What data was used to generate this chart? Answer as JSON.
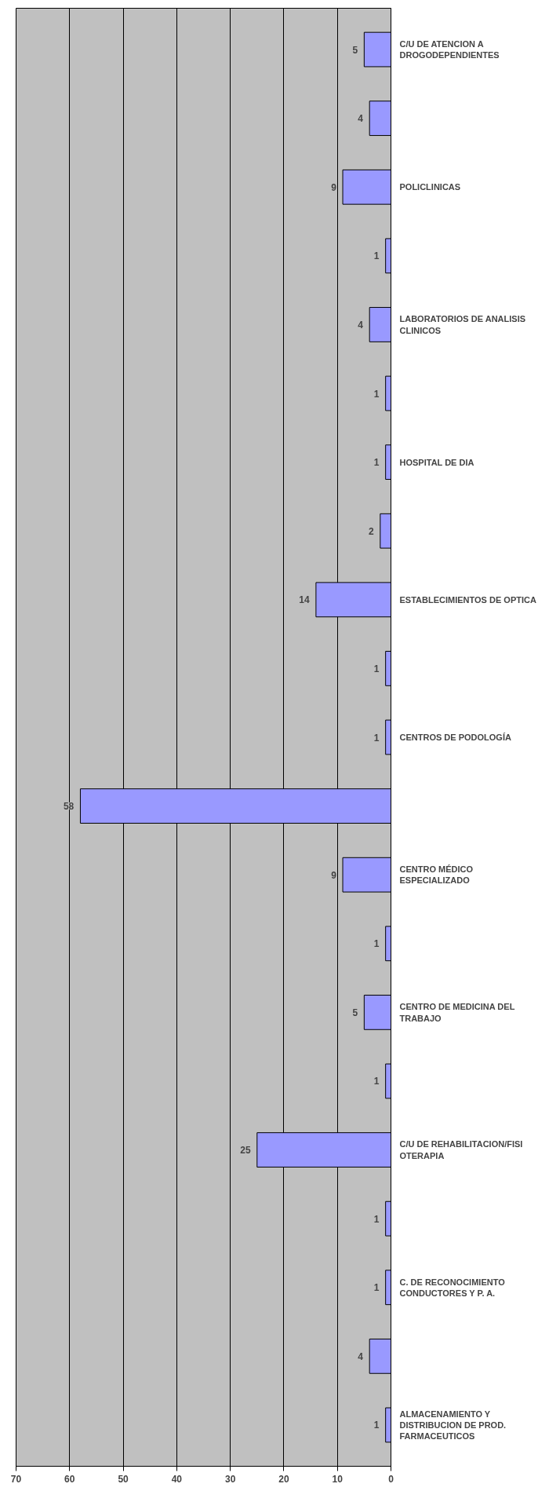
{
  "chart_data": {
    "type": "bar",
    "orientation": "horizontal",
    "categories": [
      "C/U DE ATENCION A DROGODEPENDIENTES",
      null,
      "POLICLINICAS",
      null,
      "LABORATORIOS DE ANALISIS CLINICOS",
      null,
      "HOSPITAL DE DIA",
      null,
      "ESTABLECIMIENTOS DE OPTICA",
      null,
      "CENTROS DE PODOLOGÍA",
      null,
      "CENTRO MÉDICO ESPECIALIZADO",
      null,
      "CENTRO DE MEDICINA DEL TRABAJO",
      null,
      "C/U DE REHABILITACION/FISIOTERAPIA",
      null,
      "C. DE RECONOCIMIENTO CONDUCTORES Y P. A.",
      null,
      "ALMACENAMIENTO Y DISTRIBUCION DE PROD. FARMACEUTICOS"
    ],
    "values": [
      5,
      4,
      9,
      1,
      4,
      1,
      1,
      2,
      14,
      1,
      1,
      58,
      9,
      1,
      5,
      1,
      25,
      1,
      1,
      4,
      1
    ],
    "color": "#9999ff",
    "xlim": [
      70,
      0
    ],
    "xticks": [
      70,
      60,
      50,
      40,
      30,
      20,
      10,
      0
    ],
    "grid": "x",
    "data_labels": true
  }
}
